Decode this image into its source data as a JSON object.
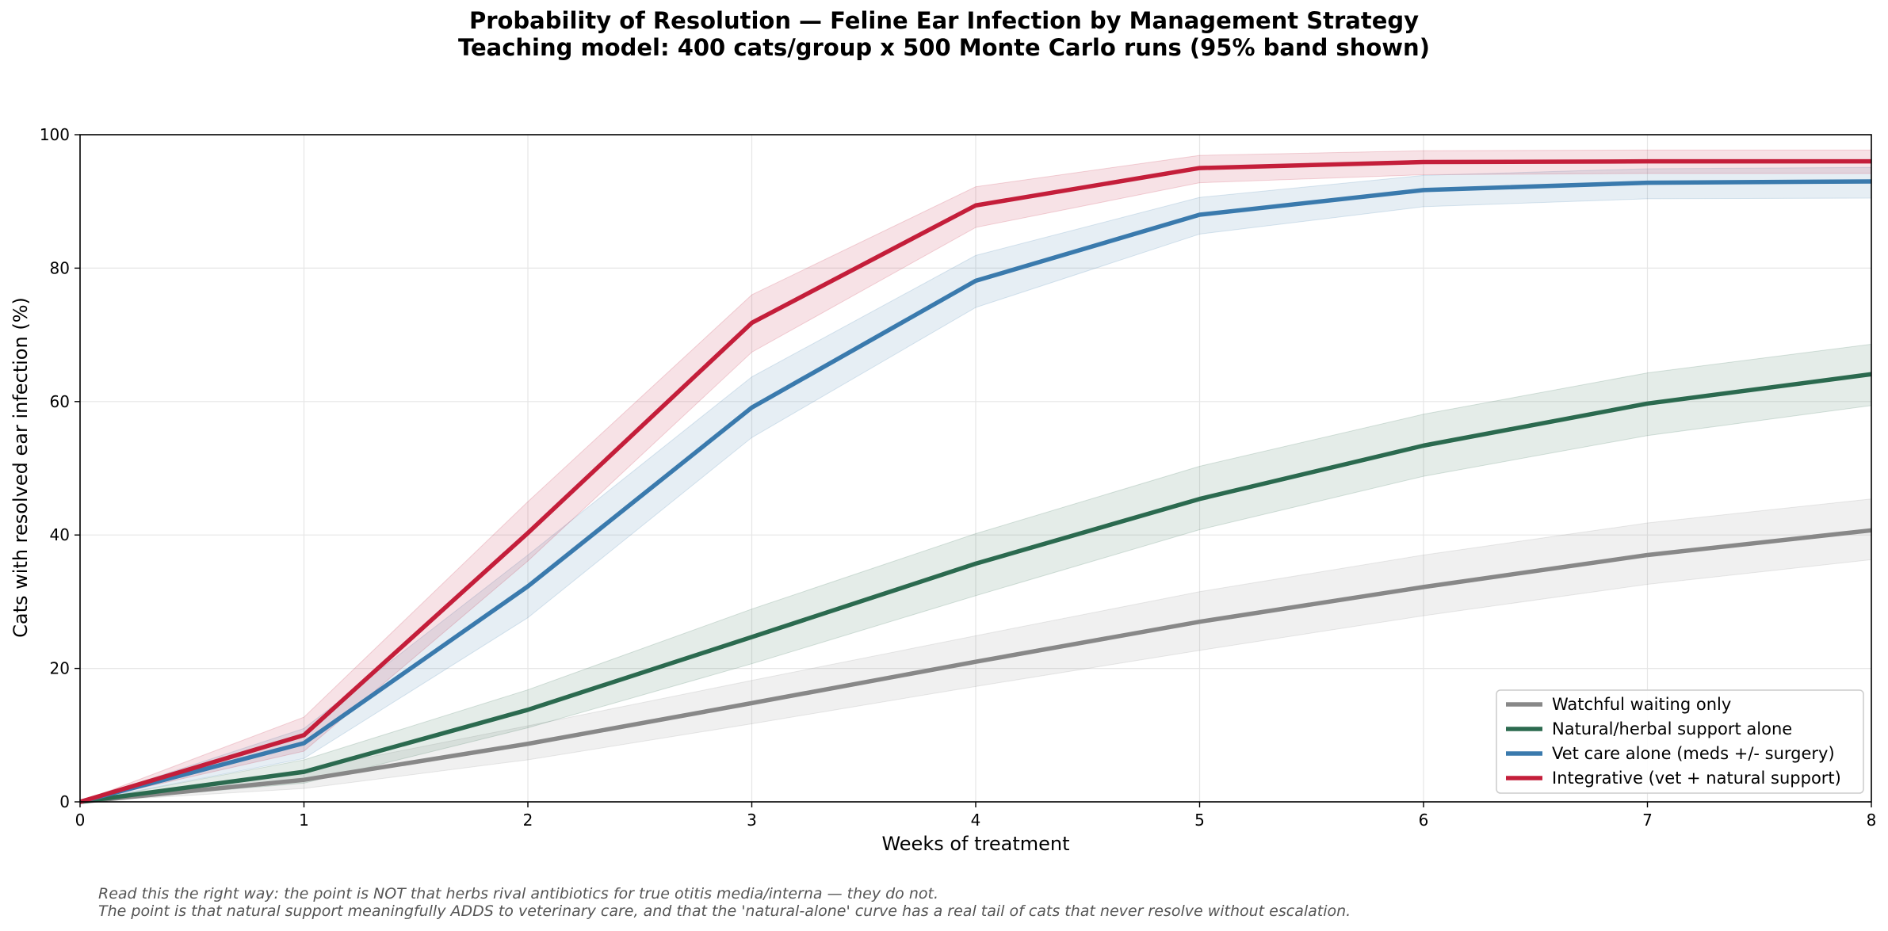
{
  "chart_data": {
    "type": "line",
    "title": "Probability of Resolution — Feline Ear Infection by Management Strategy",
    "subtitle": "Teaching model: 400 cats/group x 500 Monte Carlo runs (95% band shown)",
    "xlabel": "Weeks of treatment",
    "ylabel": "Cats with resolved ear infection (%)",
    "xlim": [
      0,
      8
    ],
    "ylim": [
      0,
      100
    ],
    "xticks": [
      0,
      1,
      2,
      3,
      4,
      5,
      6,
      7,
      8
    ],
    "yticks": [
      0,
      20,
      40,
      60,
      80,
      100
    ],
    "grid": true,
    "legend_position": "lower-right",
    "x": [
      0,
      1,
      2,
      3,
      4,
      5,
      6,
      7,
      8
    ],
    "series": [
      {
        "name": "Watchful waiting only",
        "color": "#888888",
        "values": [
          0,
          3.3,
          8.7,
          14.8,
          21.0,
          27.0,
          32.2,
          37.0,
          40.7
        ],
        "lower": [
          0,
          2.0,
          6.3,
          11.7,
          17.3,
          22.7,
          27.9,
          32.6,
          36.3
        ],
        "upper": [
          0,
          4.8,
          11.4,
          18.2,
          24.9,
          31.5,
          37.0,
          41.8,
          45.4
        ]
      },
      {
        "name": "Natural/herbal support alone",
        "color": "#2b6a4f",
        "values": [
          0,
          4.5,
          13.8,
          24.7,
          35.7,
          45.4,
          53.4,
          59.7,
          64.1
        ],
        "lower": [
          0,
          2.8,
          11.1,
          20.7,
          30.9,
          40.8,
          48.8,
          54.9,
          59.4
        ],
        "upper": [
          0,
          6.3,
          16.8,
          28.9,
          40.2,
          50.3,
          58.1,
          64.3,
          68.6
        ]
      },
      {
        "name": "Vet care alone (meds +/- surgery)",
        "color": "#3a7aad",
        "values": [
          0,
          8.8,
          32.3,
          59.1,
          78.1,
          88.0,
          91.7,
          92.8,
          93.0
        ],
        "lower": [
          0,
          6.5,
          27.6,
          54.6,
          74.1,
          85.1,
          89.2,
          90.4,
          90.5
        ],
        "upper": [
          0,
          11.0,
          37.0,
          63.7,
          81.9,
          90.6,
          93.9,
          94.9,
          95.1
        ]
      },
      {
        "name": "Integrative (vet + natural support)",
        "color": "#c41e3a",
        "values": [
          0,
          10.0,
          40.3,
          71.8,
          89.4,
          95.0,
          95.9,
          96.0,
          96.0
        ],
        "lower": [
          0,
          7.6,
          36.1,
          67.4,
          86.1,
          92.8,
          94.0,
          94.2,
          94.2
        ],
        "upper": [
          0,
          12.7,
          45.0,
          76.0,
          92.2,
          96.9,
          97.6,
          97.7,
          97.7
        ]
      }
    ]
  },
  "footnote": {
    "line1": "Read this the right way: the point is NOT that herbs rival antibiotics for true otitis media/interna — they do not.",
    "line2": "The point is that natural support meaningfully ADDS to veterinary care, and that the 'natural-alone' curve has a real tail of cats that never resolve without escalation."
  }
}
